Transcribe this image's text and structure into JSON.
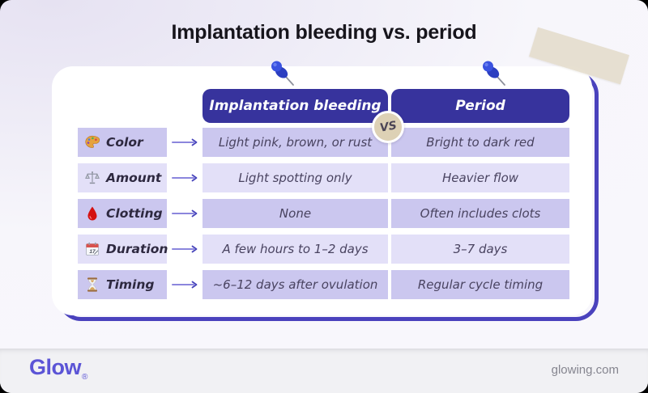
{
  "page": {
    "title": "Implantation bleeding vs. period"
  },
  "table": {
    "vs_badge": "VS",
    "columns": [
      {
        "label": "Implantation bleeding"
      },
      {
        "label": "Period"
      }
    ],
    "rows": [
      {
        "icon": "palette-icon",
        "label": "Color",
        "implantation": "Light pink, brown, or rust",
        "period": "Bright to dark red"
      },
      {
        "icon": "scale-icon",
        "label": "Amount",
        "implantation": "Light spotting only",
        "period": "Heavier flow"
      },
      {
        "icon": "blood-drop-icon",
        "label": "Clotting",
        "implantation": "None",
        "period": "Often includes clots"
      },
      {
        "icon": "calendar-icon",
        "label": "Duration",
        "implantation": "A few hours to 1–2 days",
        "period": "3–7 days"
      },
      {
        "icon": "hourglass-icon",
        "label": "Timing",
        "implantation": "~6–12 days after ovulation",
        "period": "Regular cycle timing"
      }
    ]
  },
  "icons": {
    "calendar_day": "17"
  },
  "footer": {
    "brand": "Glow",
    "registered": "®",
    "site": "glowing.com"
  },
  "colors": {
    "header_bg": "#37339d",
    "row_dark": "#cbc7ef",
    "row_light": "#e3e0f8",
    "accent_outline": "#4a42bd",
    "brand": "#5b54d6",
    "vs_badge_bg": "#ddd1b5",
    "tape": "rgba(227,218,201,0.85)"
  }
}
